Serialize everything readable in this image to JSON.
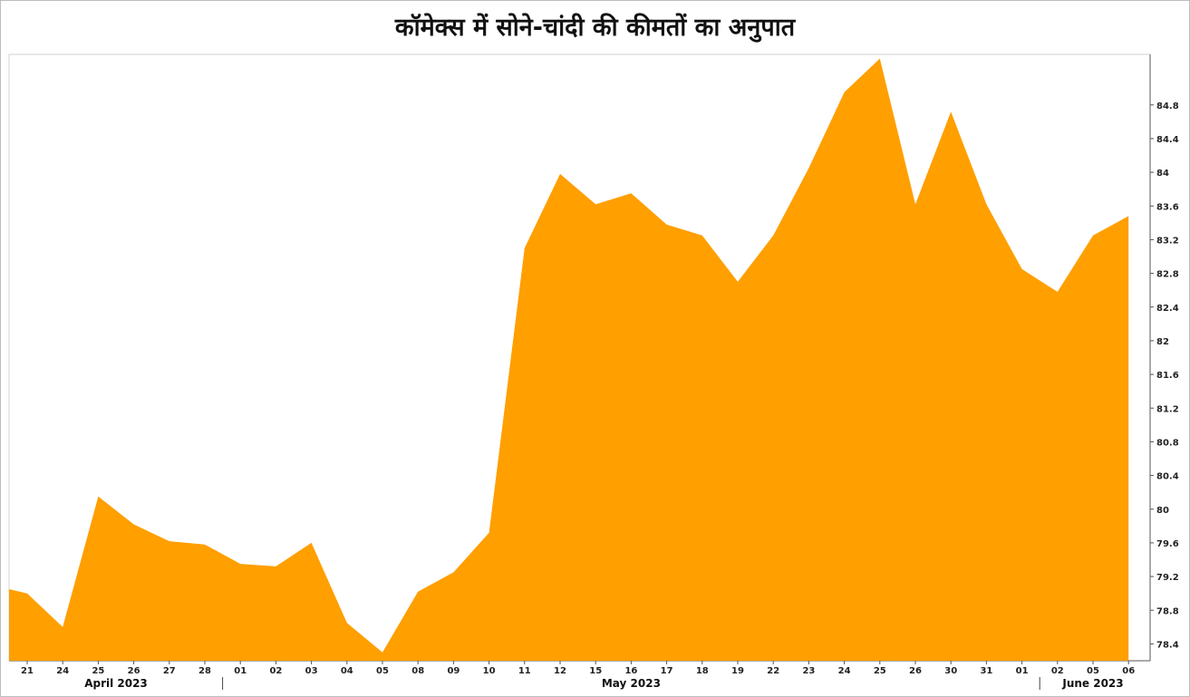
{
  "title": "कॉमेक्स में सोने-चांदी की कीमतों का अनुपात",
  "chart_data": {
    "type": "area",
    "title": "कॉमेक्स में सोने-चांदी की कीमतों का अनुपात",
    "xlabel": "",
    "ylabel": "",
    "ylim": [
      78.2,
      85.4
    ],
    "yticks": [
      78.4,
      78.8,
      79.2,
      79.6,
      80,
      80.4,
      80.8,
      81.2,
      81.6,
      82,
      82.4,
      82.8,
      83.2,
      83.6,
      84,
      84.4,
      84.8
    ],
    "ytick_labels": [
      "78.4",
      "78.8",
      "79.2",
      "79.6",
      "80",
      "80.4",
      "80.8",
      "81.2",
      "81.6",
      "82",
      "82.4",
      "82.8",
      "83.2",
      "83.6",
      "84",
      "84.4",
      "84.8"
    ],
    "grid": false,
    "color": "#FF9F00",
    "categories": [
      "21",
      "24",
      "25",
      "26",
      "27",
      "28",
      "01",
      "02",
      "03",
      "04",
      "05",
      "08",
      "09",
      "10",
      "11",
      "12",
      "15",
      "16",
      "17",
      "18",
      "19",
      "22",
      "23",
      "24",
      "25",
      "26",
      "30",
      "31",
      "01",
      "02",
      "05",
      "06"
    ],
    "months": [
      {
        "label": "April 2023",
        "start": 0,
        "end": 5
      },
      {
        "label": "May 2023",
        "start": 6,
        "end": 28
      },
      {
        "label": "June 2023",
        "start": 29,
        "end": 31
      }
    ],
    "series": [
      {
        "x": [
          -0.55,
          -0.55,
          0.0,
          1.0,
          2.0,
          3.0,
          4.0,
          5.0,
          6.0,
          7.0,
          8.0,
          9.0,
          10.0,
          11.0,
          12.0,
          13.0,
          14.0,
          15.0,
          16.0,
          17.0,
          18.0,
          19.0,
          20.0,
          21.0,
          22.0,
          23.0,
          24.0,
          25.0,
          26.0,
          27.0,
          28.0,
          29.0,
          30.0,
          31.0
        ],
        "values": [
          78.2,
          79.05,
          79.0,
          78.6,
          80.15,
          79.82,
          79.62,
          79.58,
          79.35,
          79.32,
          79.6,
          78.65,
          78.3,
          79.02,
          79.25,
          79.72,
          83.1,
          83.98,
          83.62,
          83.75,
          83.38,
          83.25,
          82.7,
          83.25,
          84.05,
          84.95,
          85.35,
          83.62,
          84.72,
          83.62,
          82.85,
          82.58,
          83.25,
          83.48
        ]
      }
    ]
  }
}
